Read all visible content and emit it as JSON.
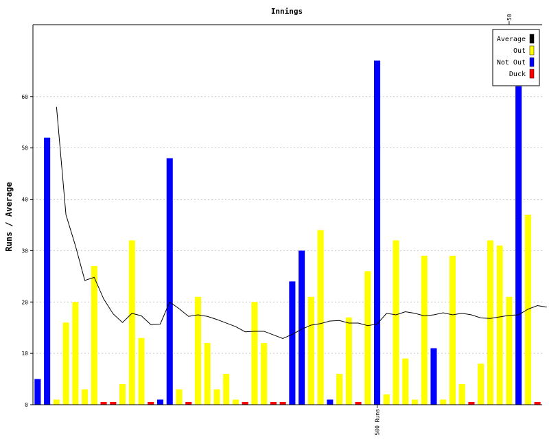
{
  "chart_data": {
    "type": "bar",
    "title": "Innings",
    "ylabel": "Runs / Average",
    "xlabel": "",
    "ylim": [
      0,
      74
    ],
    "yticks": [
      0,
      10,
      20,
      30,
      40,
      50,
      60
    ],
    "grid": true,
    "legend_position": "top-right",
    "legend": [
      {
        "label": "Average",
        "color": "#000000"
      },
      {
        "label": "Out",
        "color": "#ffff00"
      },
      {
        "label": "Not Out",
        "color": "#0000ff"
      },
      {
        "label": "Duck",
        "color": "#ff0000"
      }
    ],
    "innings": [
      {
        "runs": 5,
        "result": "notout"
      },
      {
        "runs": 52,
        "result": "notout"
      },
      {
        "runs": 1,
        "result": "out"
      },
      {
        "runs": 16,
        "result": "out"
      },
      {
        "runs": 20,
        "result": "out"
      },
      {
        "runs": 3,
        "result": "out"
      },
      {
        "runs": 27,
        "result": "out"
      },
      {
        "runs": 0,
        "result": "duck"
      },
      {
        "runs": 0,
        "result": "duck"
      },
      {
        "runs": 4,
        "result": "out"
      },
      {
        "runs": 32,
        "result": "out"
      },
      {
        "runs": 13,
        "result": "out"
      },
      {
        "runs": 0,
        "result": "duck"
      },
      {
        "runs": 1,
        "result": "notout"
      },
      {
        "runs": 48,
        "result": "notout"
      },
      {
        "runs": 3,
        "result": "out"
      },
      {
        "runs": 0,
        "result": "duck"
      },
      {
        "runs": 21,
        "result": "out"
      },
      {
        "runs": 12,
        "result": "out"
      },
      {
        "runs": 3,
        "result": "out"
      },
      {
        "runs": 6,
        "result": "out"
      },
      {
        "runs": 1,
        "result": "out"
      },
      {
        "runs": 0,
        "result": "duck"
      },
      {
        "runs": 20,
        "result": "out"
      },
      {
        "runs": 12,
        "result": "out"
      },
      {
        "runs": 0,
        "result": "duck"
      },
      {
        "runs": 0,
        "result": "duck"
      },
      {
        "runs": 24,
        "result": "notout"
      },
      {
        "runs": 30,
        "result": "notout"
      },
      {
        "runs": 21,
        "result": "out"
      },
      {
        "runs": 34,
        "result": "out"
      },
      {
        "runs": 1,
        "result": "notout"
      },
      {
        "runs": 6,
        "result": "out"
      },
      {
        "runs": 17,
        "result": "out"
      },
      {
        "runs": 0,
        "result": "duck"
      },
      {
        "runs": 26,
        "result": "out"
      },
      {
        "runs": 67,
        "result": "notout"
      },
      {
        "runs": 2,
        "result": "out"
      },
      {
        "runs": 32,
        "result": "out"
      },
      {
        "runs": 9,
        "result": "out"
      },
      {
        "runs": 1,
        "result": "out"
      },
      {
        "runs": 29,
        "result": "out"
      },
      {
        "runs": 11,
        "result": "notout"
      },
      {
        "runs": 1,
        "result": "out"
      },
      {
        "runs": 29,
        "result": "out"
      },
      {
        "runs": 4,
        "result": "out"
      },
      {
        "runs": 0,
        "result": "duck"
      },
      {
        "runs": 8,
        "result": "out"
      },
      {
        "runs": 32,
        "result": "out"
      },
      {
        "runs": 31,
        "result": "out"
      },
      {
        "runs": 21,
        "result": "out"
      },
      {
        "runs": 62,
        "result": "notout"
      },
      {
        "runs": 37,
        "result": "out"
      },
      {
        "runs": 0,
        "result": "duck"
      }
    ],
    "average_series": {
      "name": "Average",
      "start_inning": 3,
      "values": [
        58,
        37,
        31,
        24.2,
        24.8,
        20.6,
        17.7,
        16,
        17.8,
        17.3,
        15.6,
        15.7,
        20,
        18.7,
        17.2,
        17.5,
        17.2,
        16.6,
        15.9,
        15.2,
        14.2,
        14.3,
        14.3,
        13.6,
        12.9,
        13.7,
        14.7,
        15.5,
        15.8,
        16.3,
        16.4,
        15.9,
        15.9,
        15.4,
        15.7,
        17.8,
        17.5,
        18.1,
        17.8,
        17.3,
        17.5,
        17.9,
        17.5,
        17.8,
        17.5,
        16.9,
        16.8,
        17.1,
        17.4,
        17.5,
        18.6,
        19.3,
        19
      ]
    },
    "annotations": [
      {
        "text": "500 Runs",
        "at_inning": 37
      },
      {
        "text": "50",
        "at_inning": 51
      }
    ]
  }
}
